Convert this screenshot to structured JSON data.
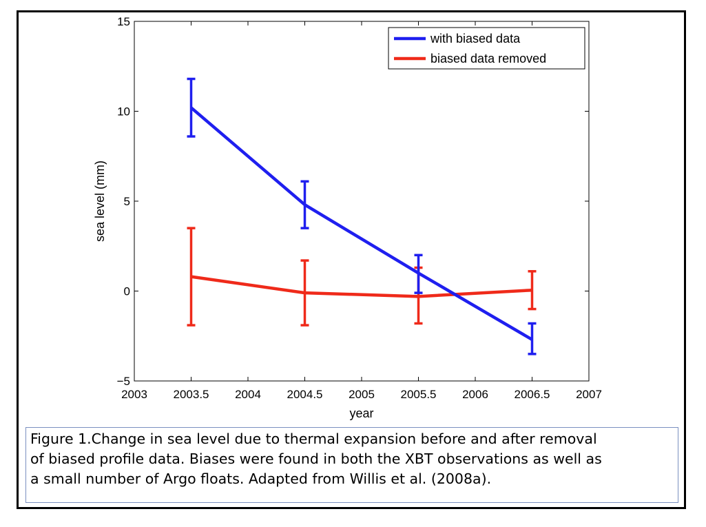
{
  "chart_data": {
    "type": "line",
    "xlabel": "year",
    "ylabel": "sea level (mm)",
    "xlim": [
      2003,
      2007
    ],
    "ylim": [
      -5,
      15
    ],
    "xticks": [
      "2003",
      "2003.5",
      "2004",
      "2004.5",
      "2005",
      "2005.5",
      "2006",
      "2006.5",
      "2007"
    ],
    "yticks": [
      "−5",
      "0",
      "5",
      "10",
      "15"
    ],
    "grid": false,
    "legend_position": "top-right",
    "x": [
      2003.5,
      2004.5,
      2005.5,
      2006.5
    ],
    "series": [
      {
        "name": "with biased data",
        "color": "#1f1fef",
        "values": [
          10.2,
          4.8,
          1.0,
          -2.7
        ],
        "err_low": [
          8.6,
          3.5,
          -0.1,
          -3.5
        ],
        "err_high": [
          11.8,
          6.1,
          2.0,
          -1.8
        ]
      },
      {
        "name": "biased data removed",
        "color": "#ef2a1a",
        "values": [
          0.8,
          -0.1,
          -0.3,
          0.05
        ],
        "err_low": [
          -1.9,
          -1.9,
          -1.8,
          -1.0
        ],
        "err_high": [
          3.5,
          1.7,
          1.3,
          1.1
        ]
      }
    ]
  },
  "caption": {
    "lines": [
      "Figure 1.Change in sea level due to thermal expansion before and after removal",
      "of biased profile data.  Biases were found in both the XBT observations as well as",
      "a small number of Argo floats.  Adapted from Willis et al. (2008a)."
    ]
  }
}
